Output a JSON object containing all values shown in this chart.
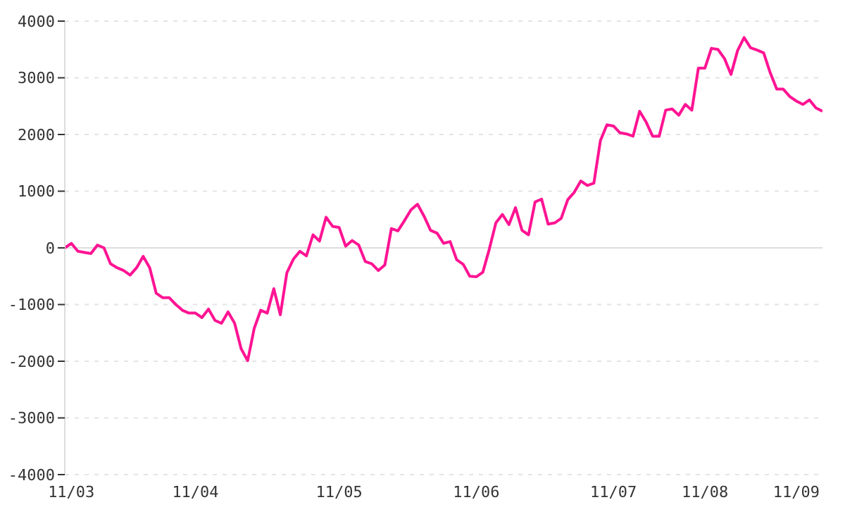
{
  "chart_data": {
    "type": "line",
    "categories": [
      null,
      "11/03",
      null,
      null,
      null,
      null,
      null,
      null,
      null,
      null,
      null,
      null,
      null,
      null,
      null,
      null,
      null,
      null,
      null,
      null,
      "11/04",
      null,
      null,
      null,
      null,
      null,
      null,
      null,
      null,
      null,
      null,
      null,
      null,
      null,
      null,
      null,
      null,
      null,
      null,
      null,
      null,
      null,
      "11/05",
      null,
      null,
      null,
      null,
      null,
      null,
      null,
      null,
      null,
      null,
      null,
      null,
      null,
      null,
      null,
      null,
      null,
      null,
      null,
      null,
      "11/06",
      null,
      null,
      null,
      null,
      null,
      null,
      null,
      null,
      null,
      null,
      null,
      null,
      null,
      null,
      null,
      null,
      null,
      null,
      null,
      null,
      "11/07",
      null,
      null,
      null,
      null,
      null,
      null,
      null,
      null,
      null,
      null,
      null,
      null,
      null,
      "11/08",
      null,
      null,
      null,
      null,
      null,
      null,
      null,
      null,
      null,
      null,
      null,
      null,
      null,
      "11/09",
      null,
      null,
      null,
      null
    ],
    "series": [
      {
        "color": "#ff1493",
        "values": [
          0,
          80,
          -60,
          -80,
          -100,
          50,
          0,
          -280,
          -350,
          -400,
          -480,
          -350,
          -150,
          -350,
          -800,
          -880,
          -880,
          -1000,
          -1100,
          -1150,
          -1150,
          -1230,
          -1080,
          -1280,
          -1330,
          -1130,
          -1330,
          -1780,
          -1990,
          -1420,
          -1100,
          -1150,
          -720,
          -1180,
          -440,
          -200,
          -60,
          -140,
          230,
          120,
          540,
          380,
          360,
          30,
          130,
          50,
          -240,
          -280,
          -400,
          -300,
          340,
          300,
          480,
          670,
          770,
          560,
          310,
          260,
          80,
          110,
          -210,
          -290,
          -500,
          -510,
          -430,
          -20,
          440,
          590,
          410,
          710,
          310,
          230,
          810,
          860,
          420,
          440,
          520,
          850,
          980,
          1180,
          1100,
          1140,
          1890,
          2170,
          2150,
          2030,
          2010,
          1970,
          2410,
          2220,
          1970,
          1970,
          2430,
          2450,
          2340,
          2530,
          2430,
          3170,
          3170,
          3520,
          3500,
          3340,
          3060,
          3480,
          3710,
          3530,
          3490,
          3440,
          3090,
          2800,
          2800,
          2670,
          2590,
          2530,
          2610,
          2470,
          2410
        ]
      }
    ],
    "ylim": [
      -4000,
      4000
    ],
    "yticks": [
      -4000,
      -3000,
      -2000,
      -1000,
      0,
      1000,
      2000,
      3000,
      4000
    ],
    "ref_lines": [
      {
        "axis": "y",
        "value": 0,
        "color": "#dddddd"
      }
    ],
    "grid": "y",
    "legend": false,
    "marker": "none",
    "line_style": "solid"
  }
}
